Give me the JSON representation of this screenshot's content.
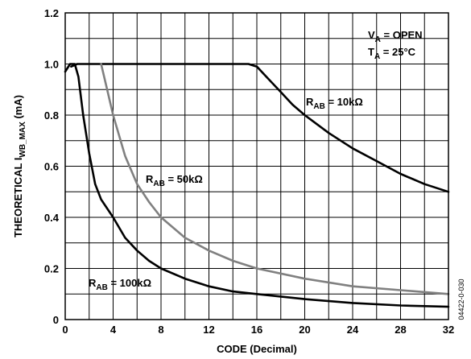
{
  "chart_data": {
    "type": "line",
    "xlabel": "CODE (Decimal)",
    "ylabel": {
      "main": "THEORETICAL I",
      "sub": "WB_MAX",
      "unit": " (mA)"
    },
    "xlim": [
      0,
      32
    ],
    "ylim": [
      0,
      1.2
    ],
    "x_ticks": [
      "0",
      "4",
      "8",
      "12",
      "16",
      "20",
      "24",
      "28",
      "32"
    ],
    "y_ticks": [
      "0",
      "0.2",
      "0.4",
      "0.6",
      "0.8",
      "1.0",
      "1.2"
    ],
    "x_tick_values": [
      0,
      4,
      8,
      12,
      16,
      20,
      24,
      28,
      32
    ],
    "y_tick_values": [
      0,
      0.2,
      0.4,
      0.6,
      0.8,
      1.0,
      1.2
    ],
    "x_grid_step": 2,
    "y_grid_step": 0.1,
    "grid": true,
    "conditions": [
      {
        "main": "V",
        "sub": "A",
        "rest": " = OPEN"
      },
      {
        "main": "T",
        "sub": "A",
        "rest": " = 25°C"
      }
    ],
    "series": [
      {
        "name": {
          "main": "R",
          "sub": "AB",
          "rest": " = 10kΩ"
        },
        "color": "#000000",
        "points": [
          [
            0.5,
            0.99
          ],
          [
            1,
            1.0
          ],
          [
            2,
            1.0
          ],
          [
            4,
            1.0
          ],
          [
            8,
            1.0
          ],
          [
            12,
            1.0
          ],
          [
            14,
            1.0
          ],
          [
            15.3,
            1.0
          ],
          [
            16,
            0.99
          ],
          [
            17,
            0.94
          ],
          [
            18,
            0.89
          ],
          [
            19,
            0.84
          ],
          [
            20,
            0.8
          ],
          [
            22,
            0.73
          ],
          [
            24,
            0.67
          ],
          [
            26,
            0.62
          ],
          [
            28,
            0.57
          ],
          [
            30,
            0.53
          ],
          [
            32,
            0.5
          ]
        ]
      },
      {
        "name": {
          "main": "R",
          "sub": "AB",
          "rest": " = 50kΩ"
        },
        "color": "#808080",
        "points": [
          [
            3,
            1.0
          ],
          [
            3.5,
            0.9
          ],
          [
            4,
            0.8
          ],
          [
            5,
            0.64
          ],
          [
            6,
            0.53
          ],
          [
            7,
            0.46
          ],
          [
            8,
            0.4
          ],
          [
            10,
            0.32
          ],
          [
            12,
            0.27
          ],
          [
            14,
            0.23
          ],
          [
            16,
            0.2
          ],
          [
            20,
            0.16
          ],
          [
            24,
            0.13
          ],
          [
            28,
            0.115
          ],
          [
            32,
            0.1
          ]
        ]
      },
      {
        "name": {
          "main": "R",
          "sub": "AB",
          "rest": " = 100kΩ"
        },
        "color": "#000000",
        "points": [
          [
            0,
            0.97
          ],
          [
            0.4,
            1.0
          ],
          [
            0.8,
            1.0
          ],
          [
            1.1,
            0.95
          ],
          [
            1.5,
            0.8
          ],
          [
            2,
            0.65
          ],
          [
            2.5,
            0.53
          ],
          [
            3,
            0.47
          ],
          [
            4,
            0.4
          ],
          [
            5,
            0.32
          ],
          [
            6,
            0.27
          ],
          [
            7,
            0.23
          ],
          [
            8,
            0.2
          ],
          [
            10,
            0.16
          ],
          [
            12,
            0.13
          ],
          [
            14,
            0.11
          ],
          [
            16,
            0.1
          ],
          [
            20,
            0.08
          ],
          [
            24,
            0.065
          ],
          [
            28,
            0.055
          ],
          [
            32,
            0.05
          ]
        ]
      }
    ]
  },
  "figure_id": "04422-0-030"
}
